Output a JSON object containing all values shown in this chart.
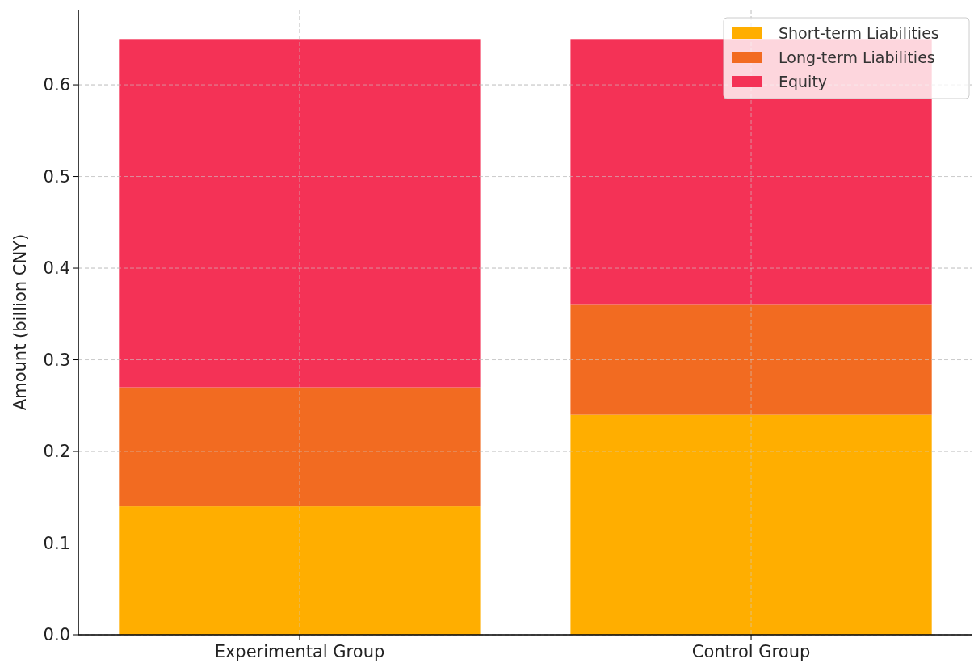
{
  "chart_data": {
    "type": "bar",
    "ylabel": "Amount (billion CNY)",
    "categories": [
      "Experimental Group",
      "Control Group"
    ],
    "stacked": true,
    "series": [
      {
        "name": "Short-term Liabilities",
        "color": "#ffae00",
        "values": [
          0.14,
          0.24
        ]
      },
      {
        "name": "Long-term Liabilities",
        "color": "#f26b21",
        "values": [
          0.13,
          0.12
        ]
      },
      {
        "name": "Equity",
        "color": "#f43256",
        "values": [
          0.38,
          0.29
        ]
      }
    ],
    "ylim": [
      0,
      0.682
    ],
    "yticks": [
      {
        "value": 0,
        "label": "0.0"
      },
      0.1,
      0.2,
      0.3,
      0.4,
      0.5,
      0.6
    ],
    "grid": true,
    "legend": "top right"
  }
}
